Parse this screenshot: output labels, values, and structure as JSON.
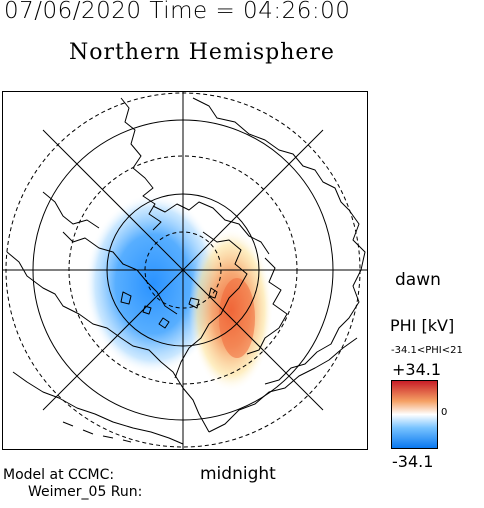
{
  "header": {
    "date_time": "07/06/2020 Time = 04:26:00",
    "hemisphere": "Northern Hemisphere"
  },
  "map": {
    "orientation_labels": {
      "right": "dawn",
      "bottom": "midnight"
    },
    "grid": {
      "rings": [
        "solid",
        "dashed",
        "solid",
        "dashed",
        "solid",
        "dashed"
      ],
      "meridian_lines": 4
    },
    "potential_pattern": {
      "negative_cell": {
        "sign": "negative",
        "side": "dusk",
        "color": "#1e8cff"
      },
      "positive_cell": {
        "sign": "positive",
        "side": "dawn",
        "color": "#f06030"
      }
    },
    "coastline_color": "#000000"
  },
  "colorbar": {
    "title": "PHI [kV]",
    "range_text": "-34.1<PHI<21",
    "max_label": "+34.1",
    "zero_label": "0",
    "min_label": "-34.1",
    "min_value": -34.1,
    "max_value": 34.1,
    "colors": {
      "max": "#c81e28",
      "upper": "#f5a064",
      "zero": "#ffffff",
      "lower": "#78c3ff",
      "min": "#0a78f0"
    }
  },
  "footer": {
    "line1": "Model at CCMC:",
    "line2": "Weimer_05 Run:"
  }
}
